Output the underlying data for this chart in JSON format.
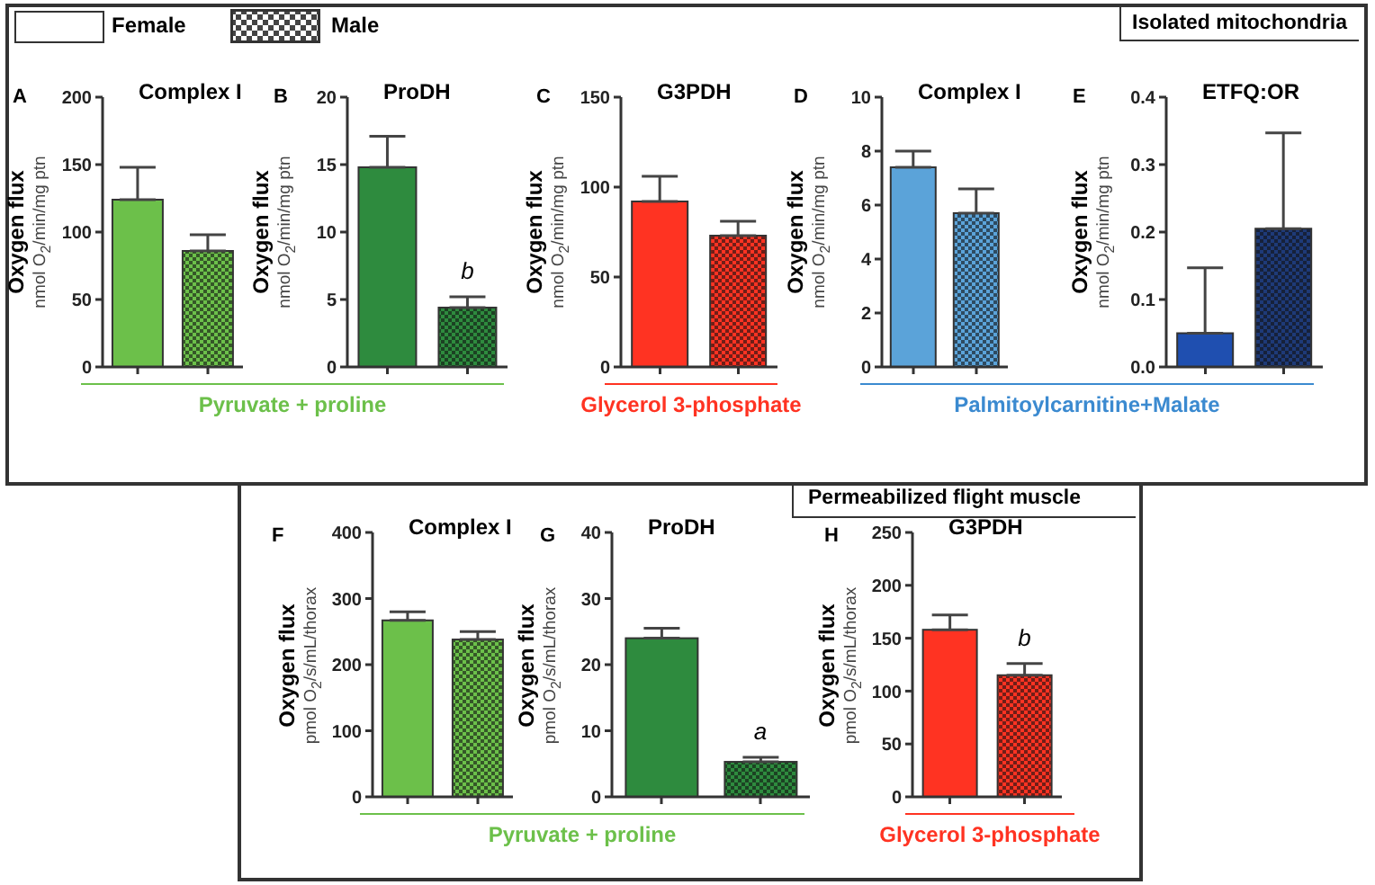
{
  "chart_data": [
    {
      "type": "other",
      "annotations": [
        "Female",
        "Male",
        "Isolated mitochondria",
        "Permeabilized flight muscle",
        "Pyruvate + proline",
        "Glycerol 3-phosphate",
        "Palmitoylcarnitine+Malate",
        "Pyruvate + proline",
        "Glycerol 3-phosphate"
      ]
    },
    {
      "type": "bar",
      "title": "Complex I",
      "ylabel": "Oxygen flux\nnmol O$_{2}$/min/mg ptn",
      "categories": [
        null,
        null
      ],
      "values": [
        124,
        86
      ],
      "colors": [
        "#6cc04a",
        "#6cc04a"
      ],
      "errors": [
        [
          124,
          148
        ],
        [
          86,
          98
        ]
      ],
      "ylim": [
        0,
        200
      ],
      "yticks": [
        0,
        50,
        100,
        150,
        200
      ],
      "annotations": [
        "A"
      ]
    },
    {
      "type": "bar",
      "title": "ProDH",
      "ylabel": "Oxygen flux\nnmol O$_{2}$/min/mg ptn",
      "categories": [
        null,
        null
      ],
      "values": [
        14.8,
        4.4
      ],
      "colors": [
        "#2e8b3e",
        "#2e8b3e"
      ],
      "errors": [
        [
          14.8,
          17.1
        ],
        [
          4.4,
          5.2
        ]
      ],
      "ylim": [
        0,
        20
      ],
      "yticks": [
        0,
        5,
        10,
        15,
        20
      ],
      "annotations": [
        "B",
        "b"
      ]
    },
    {
      "type": "bar",
      "title": "G3PDH",
      "ylabel": "Oxygen flux\nnmol O$_{2}$/min/mg ptn",
      "categories": [
        null,
        null
      ],
      "values": [
        92,
        73
      ],
      "colors": [
        "#ff3322",
        "#ff3322"
      ],
      "errors": [
        [
          92,
          106
        ],
        [
          73,
          81
        ]
      ],
      "ylim": [
        0,
        150
      ],
      "yticks": [
        0,
        50,
        100,
        150
      ],
      "annotations": [
        "C"
      ]
    },
    {
      "type": "bar",
      "title": "Complex I",
      "ylabel": "Oxygen flux\nnmol O$_{2}$/min/mg ptn",
      "categories": [
        null,
        null
      ],
      "values": [
        7.4,
        5.7
      ],
      "colors": [
        "#5ba3d9",
        "#5ba3d9"
      ],
      "errors": [
        [
          7.4,
          8.0
        ],
        [
          5.7,
          6.6
        ]
      ],
      "ylim": [
        0,
        10
      ],
      "yticks": [
        0,
        2,
        4,
        6,
        8,
        10
      ],
      "annotations": [
        "D"
      ]
    },
    {
      "type": "bar",
      "title": "ETFQ:OR",
      "ylabel": "Oxygen flux\nnmol O$_{2}$/min/mg ptn",
      "categories": [
        null,
        null
      ],
      "values": [
        0.05,
        0.205
      ],
      "colors": [
        "#1f4fb0",
        "#1e3a78"
      ],
      "errors": [
        [
          0.05,
          0.147
        ],
        [
          0.205,
          0.347
        ]
      ],
      "ylim": [
        0,
        0.4
      ],
      "yticks": [
        {
          "value": 0,
          "label": "0.0"
        },
        0.1,
        0.2,
        0.3,
        0.4
      ],
      "annotations": [
        "E"
      ]
    },
    {
      "type": "bar",
      "title": "Complex I",
      "ylabel": "Oxygen flux\npmol O$_{2}$/s/mL/thorax",
      "categories": [
        null,
        null
      ],
      "values": [
        267,
        238
      ],
      "colors": [
        "#6cc04a",
        "#6cc04a"
      ],
      "errors": [
        [
          267,
          280
        ],
        [
          238,
          250
        ]
      ],
      "ylim": [
        0,
        400
      ],
      "yticks": [
        0,
        100,
        200,
        300,
        400
      ],
      "annotations": [
        "F"
      ]
    },
    {
      "type": "bar",
      "title": "ProDH",
      "ylabel": "Oxygen flux\npmol O$_{2}$/s/mL/thorax",
      "categories": [
        null,
        null
      ],
      "values": [
        24,
        5.3
      ],
      "colors": [
        "#2e8b3e",
        "#2e8b3e"
      ],
      "errors": [
        [
          24,
          25.5
        ],
        [
          5.3,
          6
        ]
      ],
      "ylim": [
        0,
        40
      ],
      "yticks": [
        0,
        10,
        20,
        30,
        40
      ],
      "annotations": [
        "G",
        "a"
      ]
    },
    {
      "type": "bar",
      "title": "G3PDH",
      "ylabel": "Oxygen flux\npmol O$_{2}$/s/mL/thorax",
      "categories": [
        null,
        null
      ],
      "values": [
        158,
        115
      ],
      "colors": [
        "#ff3322",
        "#ff3322"
      ],
      "errors": [
        [
          158,
          172
        ],
        [
          115,
          126
        ]
      ],
      "ylim": [
        0,
        250
      ],
      "yticks": [
        0,
        50,
        100,
        150,
        200,
        250
      ],
      "annotations": [
        "H",
        "b"
      ]
    }
  ]
}
